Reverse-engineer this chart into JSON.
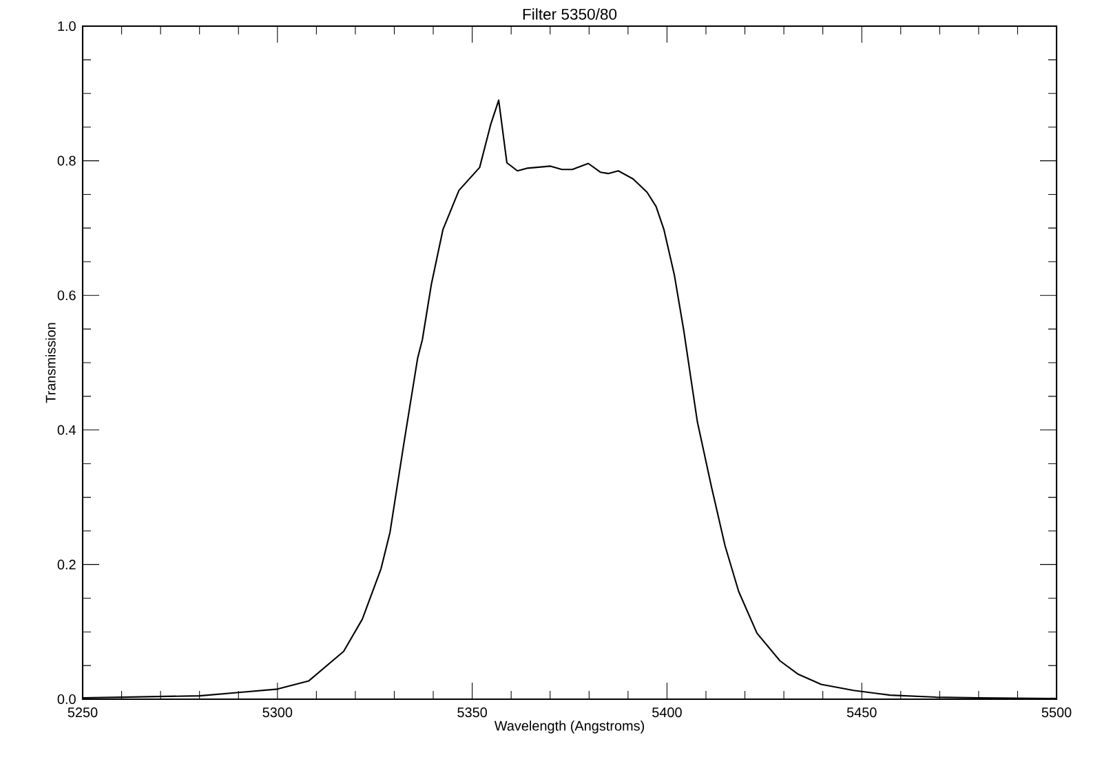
{
  "chart_data": {
    "type": "line",
    "title": "Filter 5350/80",
    "xlabel": "Wavelength (Angstroms)",
    "ylabel": "Transmission",
    "x": [
      5250,
      5260,
      5280,
      5290,
      5300,
      5308,
      5317,
      5321.8,
      5326.6,
      5328.9,
      5332.4,
      5336,
      5337.2,
      5339.5,
      5342.5,
      5346.6,
      5351.9,
      5354.8,
      5356.8,
      5358.9,
      5361.6,
      5364.2,
      5370.1,
      5373,
      5375.7,
      5379.8,
      5382.9,
      5384.9,
      5387.5,
      5391.3,
      5394.9,
      5397.2,
      5399.2,
      5401.9,
      5404.3,
      5407.8,
      5411.4,
      5414.9,
      5418.4,
      5423.1,
      5429,
      5433.7,
      5439.6,
      5447.9,
      5457.3,
      5469,
      5480,
      5500
    ],
    "values": [
      0.002,
      0.003,
      0.005,
      0.01,
      0.015,
      0.027,
      0.071,
      0.119,
      0.194,
      0.248,
      0.378,
      0.507,
      0.534,
      0.616,
      0.698,
      0.756,
      0.79,
      0.855,
      0.89,
      0.797,
      0.785,
      0.789,
      0.792,
      0.787,
      0.787,
      0.796,
      0.783,
      0.781,
      0.785,
      0.773,
      0.753,
      0.732,
      0.698,
      0.63,
      0.548,
      0.412,
      0.316,
      0.228,
      0.16,
      0.098,
      0.057,
      0.037,
      0.022,
      0.013,
      0.006,
      0.003,
      0.002,
      0.001
    ],
    "color": "#000000",
    "xlim": [
      5250,
      5500
    ],
    "ylim": [
      0,
      1
    ],
    "xticks": [
      5250,
      5300,
      5350,
      5400,
      5450,
      5500
    ],
    "yticks": [
      {
        "value": 0,
        "label": "0.0"
      },
      {
        "value": 0.2,
        "label": "0.2"
      },
      {
        "value": 0.4,
        "label": "0.4"
      },
      {
        "value": 0.6,
        "label": "0.6"
      },
      {
        "value": 0.8,
        "label": "0.8"
      },
      {
        "value": 1,
        "label": "1.0"
      }
    ]
  }
}
